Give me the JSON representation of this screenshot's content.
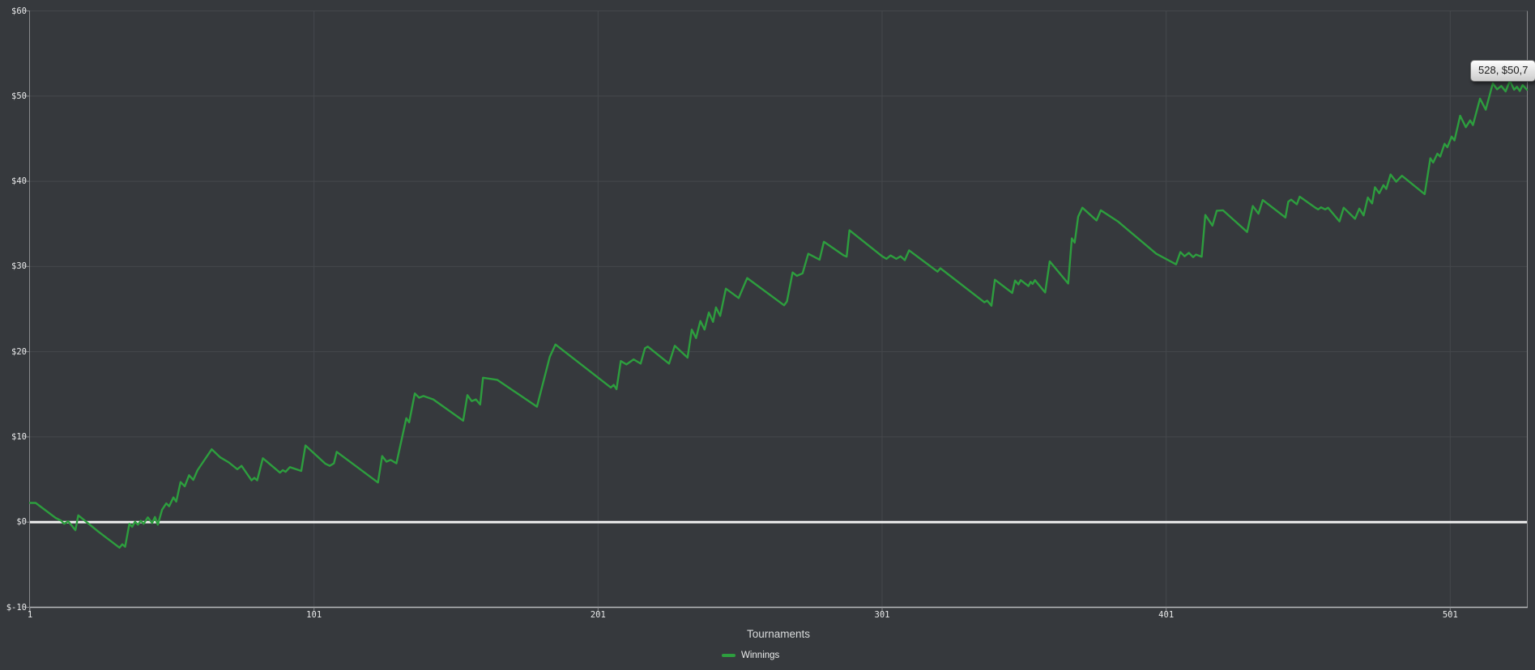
{
  "window": {
    "kind": "poker-winnings-graph"
  },
  "colors": {
    "background": "#36393d",
    "gridline": "#45484c",
    "axis_border": "#87898c",
    "axis_bottom": "#b9bbbd",
    "zero_line": "#efefef",
    "series": "#2d9e3e",
    "tick_label": "#e8e9ea"
  },
  "tooltip": {
    "text": "528, $50,7"
  },
  "xaxis": {
    "label": "Tournaments",
    "tick_labels": [
      "1",
      "101",
      "201",
      "301",
      "401",
      "501"
    ],
    "tick_values": [
      1,
      101,
      201,
      301,
      401,
      501
    ]
  },
  "yaxis": {
    "tick_labels": [
      "$60",
      "$50",
      "$40",
      "$30",
      "$20",
      "$10",
      "$0",
      "$-10"
    ],
    "tick_values": [
      60,
      50,
      40,
      30,
      20,
      10,
      0,
      -10
    ]
  },
  "legend": {
    "items": [
      {
        "label": "Winnings",
        "color": "#2d9e3e"
      }
    ]
  },
  "chart_data": {
    "type": "line",
    "title": "",
    "xlabel": "Tournaments",
    "ylabel": "",
    "xlim": [
      1,
      528
    ],
    "ylim": [
      -10,
      60
    ],
    "grid": true,
    "zero_line": true,
    "legend_position": "bottom",
    "series": [
      {
        "name": "Winnings",
        "color": "#2d9e3e",
        "points_format": "[tournament, cumulative_winnings_usd] turning-point anchors, piecewise linear",
        "points": [
          [
            1,
            2.25
          ],
          [
            3,
            2.25
          ],
          [
            10,
            0.5
          ],
          [
            12,
            0.15
          ],
          [
            13,
            -0.2
          ],
          [
            14.5,
            0.1
          ],
          [
            17,
            -0.95
          ],
          [
            18,
            0.8
          ],
          [
            25,
            -1.1
          ],
          [
            32.5,
            -3
          ],
          [
            33.5,
            -2.6
          ],
          [
            34.5,
            -2.9
          ],
          [
            36,
            -0.2
          ],
          [
            37,
            -0.55
          ],
          [
            38,
            0.05
          ],
          [
            39,
            -0.3
          ],
          [
            40,
            0.15
          ],
          [
            41,
            -0.2
          ],
          [
            42.5,
            0.55
          ],
          [
            44,
            -0.1
          ],
          [
            45,
            0.6
          ],
          [
            46,
            -0.3
          ],
          [
            47.5,
            1.45
          ],
          [
            49,
            2.2
          ],
          [
            50,
            1.85
          ],
          [
            51.5,
            2.9
          ],
          [
            52.5,
            2.4
          ],
          [
            54,
            4.7
          ],
          [
            55.5,
            4.2
          ],
          [
            57,
            5.5
          ],
          [
            58.5,
            4.95
          ],
          [
            60,
            6.1
          ],
          [
            65,
            8.55
          ],
          [
            68,
            7.6
          ],
          [
            71,
            7
          ],
          [
            74,
            6.2
          ],
          [
            75.5,
            6.6
          ],
          [
            79,
            4.9
          ],
          [
            80,
            5.2
          ],
          [
            81,
            4.9
          ],
          [
            83,
            7.5
          ],
          [
            89,
            5.8
          ],
          [
            90,
            6.1
          ],
          [
            91,
            5.9
          ],
          [
            92.5,
            6.45
          ],
          [
            96.5,
            6
          ],
          [
            98,
            9
          ],
          [
            105,
            6.85
          ],
          [
            106.5,
            6.6
          ],
          [
            108,
            6.9
          ],
          [
            109,
            8.25
          ],
          [
            123.5,
            4.65
          ],
          [
            125,
            7.75
          ],
          [
            126.5,
            7.1
          ],
          [
            128,
            7.3
          ],
          [
            130,
            6.9
          ],
          [
            133.5,
            12.2
          ],
          [
            134.5,
            11.7
          ],
          [
            136.5,
            15.1
          ],
          [
            138,
            14.6
          ],
          [
            139.5,
            14.8
          ],
          [
            143,
            14.4
          ],
          [
            153.5,
            11.9
          ],
          [
            155,
            14.9
          ],
          [
            156.5,
            14.2
          ],
          [
            158,
            14.4
          ],
          [
            159.5,
            13.8
          ],
          [
            160.5,
            16.95
          ],
          [
            165.5,
            16.7
          ],
          [
            179.5,
            13.55
          ],
          [
            184,
            19.4
          ],
          [
            186,
            20.85
          ],
          [
            205.5,
            15.8
          ],
          [
            206.5,
            16.1
          ],
          [
            207.5,
            15.6
          ],
          [
            209,
            18.9
          ],
          [
            211,
            18.5
          ],
          [
            213.5,
            19.1
          ],
          [
            216,
            18.6
          ],
          [
            217.5,
            20.4
          ],
          [
            218.5,
            20.6
          ],
          [
            226,
            18.6
          ],
          [
            228,
            20.7
          ],
          [
            232.5,
            19.3
          ],
          [
            234,
            22.6
          ],
          [
            235.5,
            21.6
          ],
          [
            237,
            23.6
          ],
          [
            238.5,
            22.6
          ],
          [
            240,
            24.6
          ],
          [
            241.5,
            23.5
          ],
          [
            242.5,
            25.2
          ],
          [
            244,
            24.2
          ],
          [
            246,
            27.4
          ],
          [
            250.5,
            26.3
          ],
          [
            253.5,
            28.65
          ],
          [
            266.5,
            25.45
          ],
          [
            267.5,
            25.9
          ],
          [
            269.5,
            29.3
          ],
          [
            271,
            28.9
          ],
          [
            273,
            29.2
          ],
          [
            275,
            31.5
          ],
          [
            279,
            30.8
          ],
          [
            280.5,
            32.9
          ],
          [
            287.5,
            31.3
          ],
          [
            288.5,
            31.15
          ],
          [
            289.5,
            34.25
          ],
          [
            301,
            31.2
          ],
          [
            302.5,
            30.9
          ],
          [
            304,
            31.3
          ],
          [
            306,
            30.9
          ],
          [
            307.5,
            31.2
          ],
          [
            309,
            30.75
          ],
          [
            310.5,
            31.9
          ],
          [
            320.5,
            29.4
          ],
          [
            321.5,
            29.8
          ],
          [
            337,
            25.8
          ],
          [
            338,
            26
          ],
          [
            339.5,
            25.4
          ],
          [
            340.7,
            28.45
          ],
          [
            346.8,
            26.9
          ],
          [
            347.8,
            28.35
          ],
          [
            349,
            27.9
          ],
          [
            349.8,
            28.4
          ],
          [
            352.5,
            27.7
          ],
          [
            353.3,
            28.2
          ],
          [
            354,
            27.95
          ],
          [
            354.8,
            28.4
          ],
          [
            358.4,
            26.95
          ],
          [
            360,
            30.6
          ],
          [
            366.5,
            28
          ],
          [
            367.8,
            33.3
          ],
          [
            368.8,
            32.8
          ],
          [
            370,
            35.85
          ],
          [
            371.5,
            36.9
          ],
          [
            376.5,
            35.4
          ],
          [
            378,
            36.6
          ],
          [
            384,
            35.3
          ],
          [
            397.5,
            31.5
          ],
          [
            404.5,
            30.25
          ],
          [
            406,
            31.7
          ],
          [
            407.5,
            31.2
          ],
          [
            409,
            31.6
          ],
          [
            410.5,
            31.1
          ],
          [
            411.5,
            31.4
          ],
          [
            413.5,
            31.15
          ],
          [
            414.8,
            36.05
          ],
          [
            417.3,
            34.8
          ],
          [
            418.8,
            36.55
          ],
          [
            421,
            36.6
          ],
          [
            429.5,
            34.05
          ],
          [
            431.5,
            37.1
          ],
          [
            433.5,
            36.2
          ],
          [
            435,
            37.8
          ],
          [
            443,
            35.75
          ],
          [
            444,
            37.6
          ],
          [
            445,
            37.85
          ],
          [
            447,
            37.3
          ],
          [
            448,
            38.2
          ],
          [
            453.5,
            36.9
          ],
          [
            454.5,
            36.7
          ],
          [
            455.5,
            36.95
          ],
          [
            457,
            36.7
          ],
          [
            458,
            36.9
          ],
          [
            462,
            35.3
          ],
          [
            463.5,
            36.9
          ],
          [
            467.5,
            35.6
          ],
          [
            469,
            36.8
          ],
          [
            470.5,
            36
          ],
          [
            472,
            38.1
          ],
          [
            473.5,
            37.4
          ],
          [
            474.5,
            39.3
          ],
          [
            476,
            38.6
          ],
          [
            477.5,
            39.55
          ],
          [
            478.5,
            39.1
          ],
          [
            480,
            40.8
          ],
          [
            482,
            39.95
          ],
          [
            484,
            40.65
          ],
          [
            492,
            38.5
          ],
          [
            494,
            42.7
          ],
          [
            495,
            42.2
          ],
          [
            496.5,
            43.25
          ],
          [
            497.5,
            42.9
          ],
          [
            499,
            44.4
          ],
          [
            500,
            44
          ],
          [
            501.5,
            45.25
          ],
          [
            502.5,
            44.8
          ],
          [
            504.5,
            47.7
          ],
          [
            506.5,
            46.35
          ],
          [
            508,
            47.15
          ],
          [
            509,
            46.6
          ],
          [
            511.5,
            49.7
          ],
          [
            513.5,
            48.4
          ],
          [
            516,
            51.5
          ],
          [
            517.5,
            50.8
          ],
          [
            519,
            51.2
          ],
          [
            520.5,
            50.55
          ],
          [
            522,
            51.8
          ],
          [
            523.5,
            50.75
          ],
          [
            524.5,
            51.1
          ],
          [
            525.5,
            50.6
          ],
          [
            526.5,
            51.3
          ],
          [
            528,
            50.75
          ]
        ],
        "last_point_tooltip": "528, $50,7"
      }
    ]
  }
}
